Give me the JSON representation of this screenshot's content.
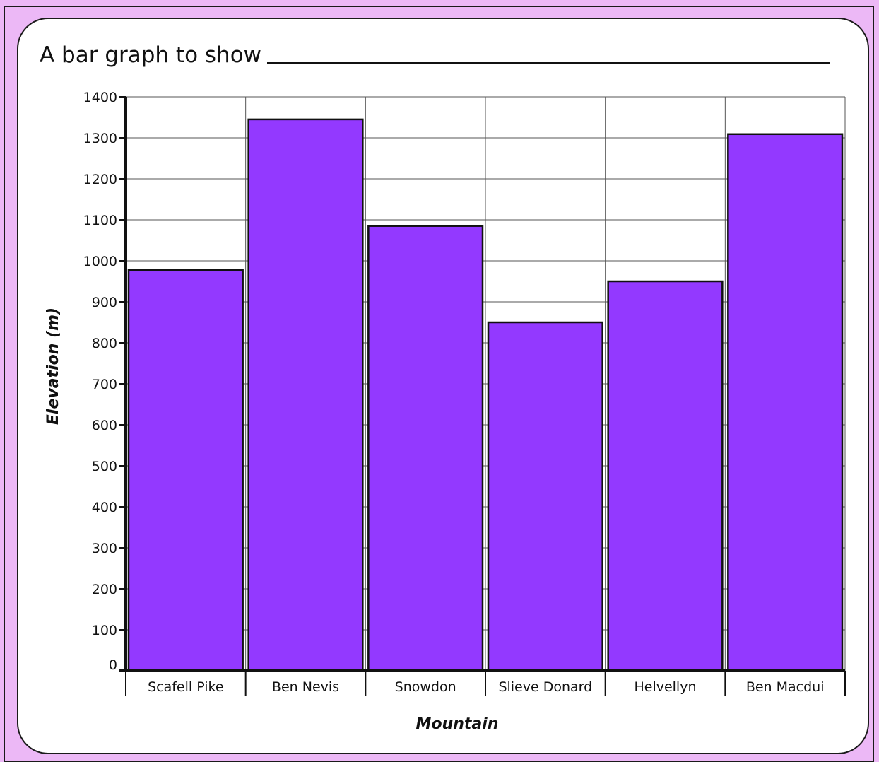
{
  "colors": {
    "page_background": "#ecb8f6",
    "card_background": "#ffffff",
    "bar_fill": "#9339ff",
    "bar_stroke": "#111111",
    "grid": "#555555"
  },
  "header": {
    "title_prefix": "A bar graph to show"
  },
  "chart_data": {
    "type": "bar",
    "title": "",
    "xlabel": "Mountain",
    "ylabel": "Elevation (m)",
    "categories": [
      "Scafell Pike",
      "Ben Nevis",
      "Snowdon",
      "Slieve Donard",
      "Helvellyn",
      "Ben Macdui"
    ],
    "values": [
      978,
      1345,
      1085,
      850,
      950,
      1309
    ],
    "ylim": [
      0,
      1400
    ],
    "yticks": [
      0,
      100,
      200,
      300,
      400,
      500,
      600,
      700,
      800,
      900,
      1000,
      1100,
      1200,
      1300,
      1400
    ],
    "grid": true,
    "legend": "none"
  }
}
